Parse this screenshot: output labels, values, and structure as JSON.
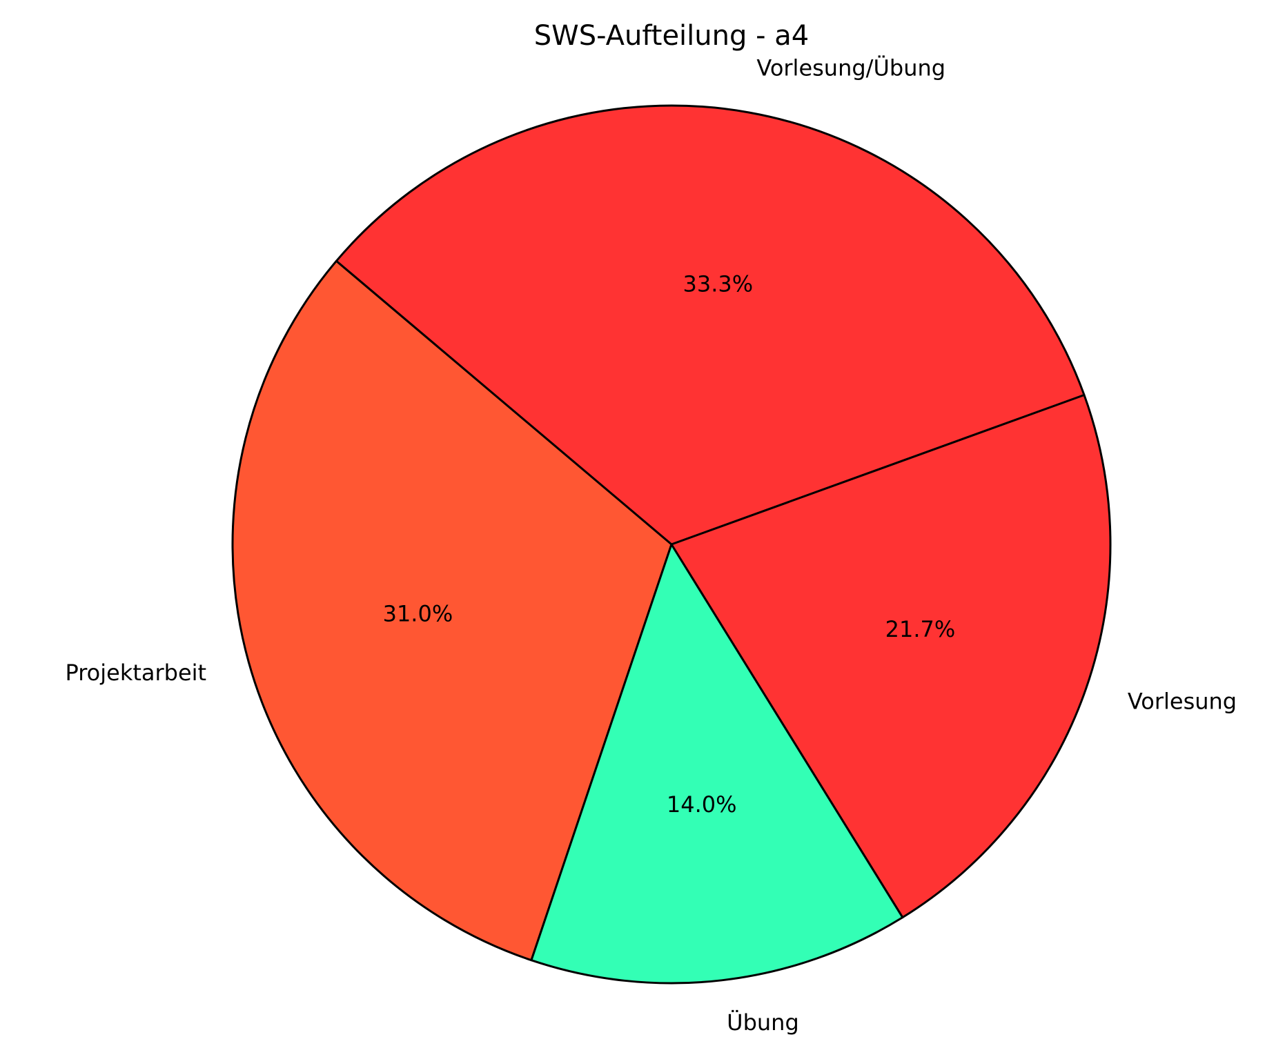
{
  "chart_data": {
    "type": "pie",
    "title": "SWS-Aufteilung - a4",
    "categories": [
      "Vorlesung/Übung",
      "Projektarbeit",
      "Übung",
      "Vorlesung"
    ],
    "values": [
      33.3,
      31.0,
      14.0,
      21.7
    ],
    "value_labels": [
      "33.3%",
      "31.0%",
      "14.0%",
      "21.7%"
    ],
    "colors": [
      "#ff3333",
      "#ff5733",
      "#33ffb5",
      "#ff3333"
    ]
  }
}
